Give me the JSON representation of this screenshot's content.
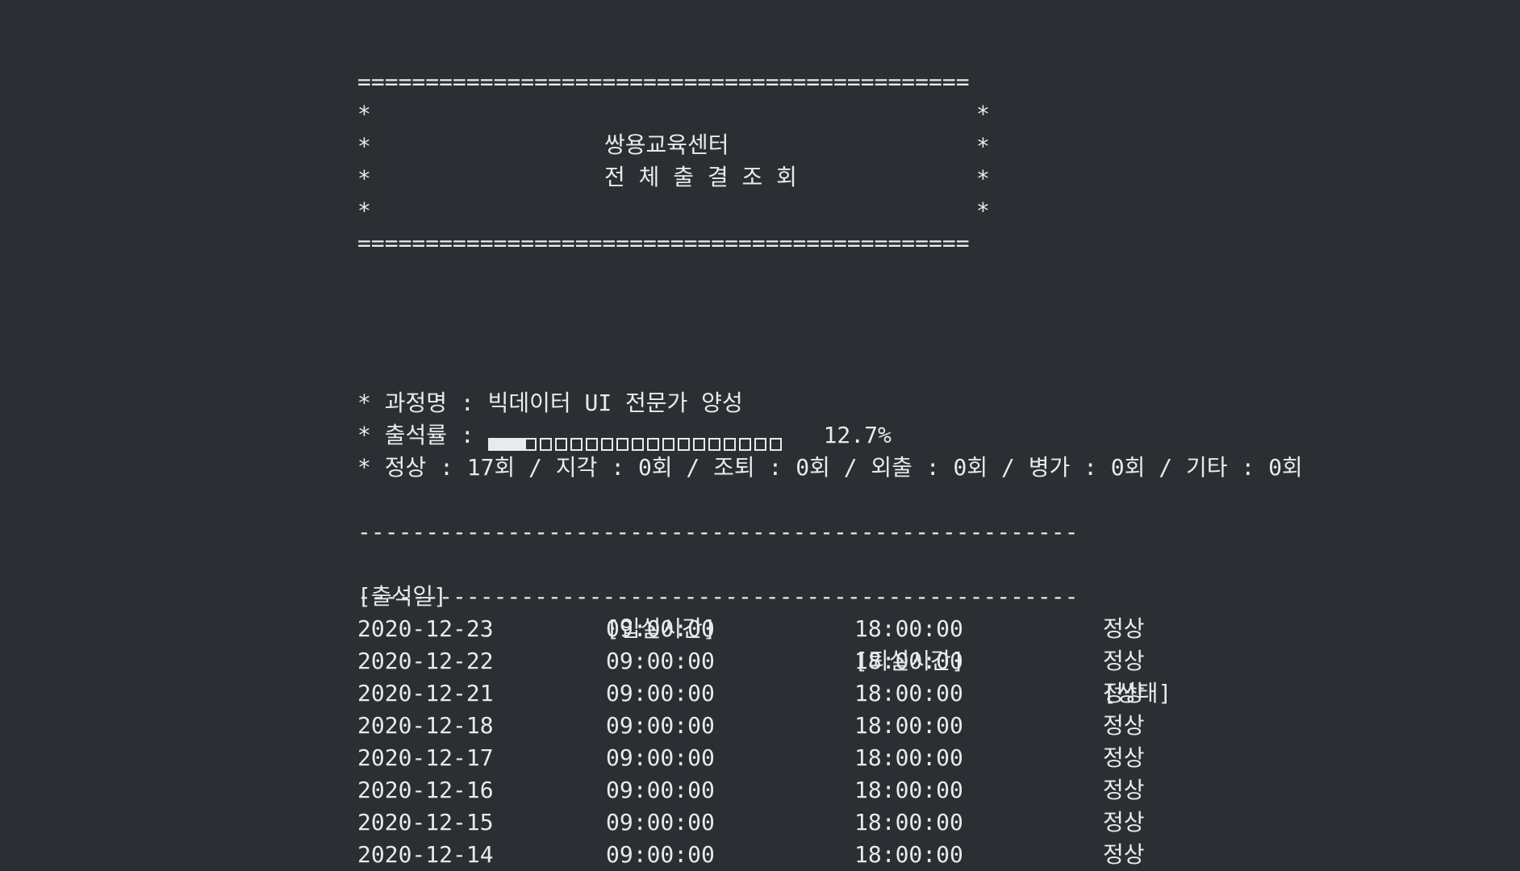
{
  "banner": {
    "rule": "=============================================",
    "star": "*",
    "title": "쌍용교육센터",
    "subtitle": "전 체 출 결 조 회"
  },
  "summary": {
    "course_prefix": "* 과정명 : ",
    "course_name": "빅데이터 UI 전문가 양성",
    "rate_prefix": "* 출석률 : ",
    "rate_percent_text": "12.7%",
    "rate_fraction": 0.127,
    "progress_cells_total": 20,
    "counts_text": "* 정상 : 17회 / 지각 : 0회 / 조퇴 : 0회 / 외출 : 0회 / 병가 : 0회 / 기타 : 0회"
  },
  "table": {
    "rule": "-----------------------------------------------------",
    "headers": [
      "[출석일]",
      "[입실시간]",
      "[퇴실시간]",
      "[상태]"
    ],
    "rows": [
      [
        "2020-12-23",
        "09:00:00",
        "18:00:00",
        "정상"
      ],
      [
        "2020-12-22",
        "09:00:00",
        "18:00:00",
        "정상"
      ],
      [
        "2020-12-21",
        "09:00:00",
        "18:00:00",
        "정상"
      ],
      [
        "2020-12-18",
        "09:00:00",
        "18:00:00",
        "정상"
      ],
      [
        "2020-12-17",
        "09:00:00",
        "18:00:00",
        "정상"
      ],
      [
        "2020-12-16",
        "09:00:00",
        "18:00:00",
        "정상"
      ],
      [
        "2020-12-15",
        "09:00:00",
        "18:00:00",
        "정상"
      ],
      [
        "2020-12-14",
        "09:00:00",
        "18:00:00",
        "정상"
      ]
    ]
  },
  "colors": {
    "background": "#2b2e32",
    "foreground": "#e8eaec"
  }
}
